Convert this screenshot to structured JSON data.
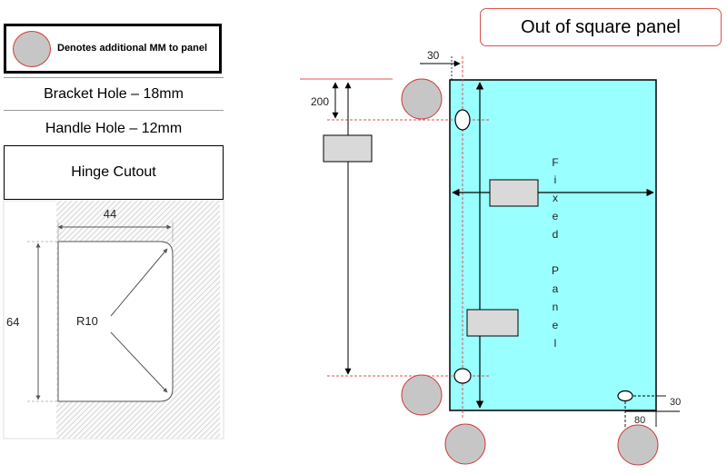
{
  "legend": {
    "text": "Denotes additional MM to panel"
  },
  "labels": {
    "bracket_hole": "Bracket Hole – 18mm",
    "handle_hole": "Handle Hole – 12mm",
    "hinge_cutout": "Hinge Cutout"
  },
  "title": "Out of square panel",
  "hinge_detail": {
    "width": "44",
    "height": "64",
    "radius": "R10"
  },
  "panel": {
    "dim_top_offset": "30",
    "dim_vertical": "200",
    "dim_corner_offset": "30",
    "dim_corner_bottom": "80",
    "fixed_letters": [
      "F",
      "i",
      "x",
      "e",
      "d"
    ],
    "panel_letters": [
      "P",
      "a",
      "n",
      "e",
      "l"
    ]
  },
  "colors": {
    "panel_fill": "#99ffff",
    "marker_fill": "#c6c6c6",
    "marker_outline": "#d23c3c",
    "guide_red": "#e05050"
  }
}
